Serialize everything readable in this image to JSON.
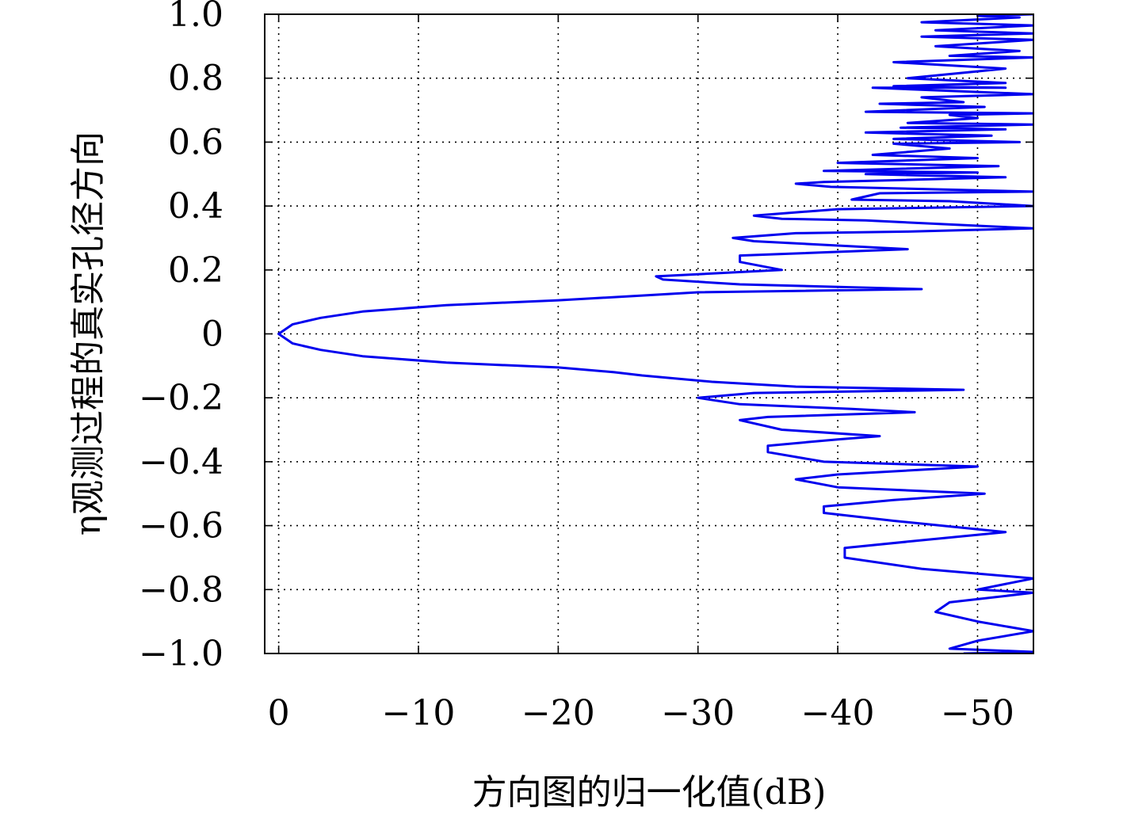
{
  "chart_data": {
    "type": "line",
    "title": "",
    "xlabel": "方向图的归一化值(dB)",
    "ylabel": "η观测过程的真实孔径方向",
    "xlim": [
      1,
      -54
    ],
    "ylim": [
      -1.0,
      1.0
    ],
    "x_axis_reversed": true,
    "grid": true,
    "legend": "none",
    "x_ticks": [
      0,
      -10,
      -20,
      -30,
      -40,
      -50
    ],
    "x_tick_labels": [
      "0",
      "−10",
      "−20",
      "−30",
      "−40",
      "−50"
    ],
    "y_ticks": [
      1.0,
      0.8,
      0.6,
      0.4,
      0.2,
      0,
      -0.2,
      -0.4,
      -0.6,
      -0.8,
      -1.0
    ],
    "y_tick_labels": [
      "1.0",
      "0.8",
      "0.6",
      "0.4",
      "0.2",
      "0",
      "−0.2",
      "−0.4",
      "−0.6",
      "−0.8",
      "−1.0"
    ],
    "series": [
      {
        "color": "#0000ee",
        "points": [
          [
            -54,
            1.0
          ],
          [
            -50,
            0.995
          ],
          [
            -53,
            0.99
          ],
          [
            -46,
            0.975
          ],
          [
            -54,
            0.965
          ],
          [
            -47,
            0.95
          ],
          [
            -54,
            0.94
          ],
          [
            -46,
            0.93
          ],
          [
            -54,
            0.92
          ],
          [
            -47,
            0.9
          ],
          [
            -53,
            0.885
          ],
          [
            -48,
            0.87
          ],
          [
            -54,
            0.865
          ],
          [
            -44,
            0.85
          ],
          [
            -52,
            0.83
          ],
          [
            -45,
            0.8
          ],
          [
            -52,
            0.785
          ],
          [
            -44,
            0.775
          ],
          [
            -52,
            0.77
          ],
          [
            -42.5,
            0.77
          ],
          [
            -54,
            0.75
          ],
          [
            -46,
            0.74
          ],
          [
            -49,
            0.725
          ],
          [
            -43,
            0.72
          ],
          [
            -50.5,
            0.71
          ],
          [
            -42,
            0.695
          ],
          [
            -54,
            0.69
          ],
          [
            -48,
            0.685
          ],
          [
            -50,
            0.675
          ],
          [
            -45,
            0.66
          ],
          [
            -54,
            0.655
          ],
          [
            -44.5,
            0.645
          ],
          [
            -52,
            0.64
          ],
          [
            -42,
            0.63
          ],
          [
            -51,
            0.62
          ],
          [
            -44,
            0.61
          ],
          [
            -53,
            0.6
          ],
          [
            -44,
            0.595
          ],
          [
            -48,
            0.58
          ],
          [
            -42.5,
            0.56
          ],
          [
            -50,
            0.55
          ],
          [
            -40,
            0.535
          ],
          [
            -51.5,
            0.525
          ],
          [
            -39,
            0.51
          ],
          [
            -50,
            0.505
          ],
          [
            -42,
            0.5
          ],
          [
            -52,
            0.49
          ],
          [
            -39,
            0.475
          ],
          [
            -37,
            0.47
          ],
          [
            -39.5,
            0.46
          ],
          [
            -54,
            0.445
          ],
          [
            -43,
            0.44
          ],
          [
            -41,
            0.42
          ],
          [
            -48,
            0.415
          ],
          [
            -54,
            0.4
          ],
          [
            -40,
            0.39
          ],
          [
            -34,
            0.37
          ],
          [
            -36,
            0.36
          ],
          [
            -42,
            0.355
          ],
          [
            -54,
            0.33
          ],
          [
            -45,
            0.32
          ],
          [
            -37,
            0.315
          ],
          [
            -32.5,
            0.3
          ],
          [
            -34,
            0.29
          ],
          [
            -45,
            0.265
          ],
          [
            -33,
            0.245
          ],
          [
            -33,
            0.225
          ],
          [
            -36,
            0.2
          ],
          [
            -27,
            0.18
          ],
          [
            -27.5,
            0.17
          ],
          [
            -33,
            0.155
          ],
          [
            -46,
            0.14
          ],
          [
            -30,
            0.13
          ],
          [
            -26,
            0.12
          ],
          [
            -20,
            0.105
          ],
          [
            -12,
            0.09
          ],
          [
            -6,
            0.07
          ],
          [
            -3,
            0.05
          ],
          [
            -1,
            0.03
          ],
          [
            0,
            0.0
          ],
          [
            -1,
            -0.03
          ],
          [
            -3,
            -0.05
          ],
          [
            -6,
            -0.07
          ],
          [
            -12,
            -0.09
          ],
          [
            -20,
            -0.105
          ],
          [
            -24,
            -0.12
          ],
          [
            -26,
            -0.13
          ],
          [
            -31,
            -0.15
          ],
          [
            -37,
            -0.165
          ],
          [
            -49,
            -0.175
          ],
          [
            -34,
            -0.185
          ],
          [
            -30,
            -0.2
          ],
          [
            -33,
            -0.22
          ],
          [
            -41,
            -0.235
          ],
          [
            -45.5,
            -0.245
          ],
          [
            -35,
            -0.26
          ],
          [
            -33,
            -0.27
          ],
          [
            -36,
            -0.3
          ],
          [
            -43,
            -0.32
          ],
          [
            -40,
            -0.33
          ],
          [
            -35,
            -0.35
          ],
          [
            -35,
            -0.37
          ],
          [
            -39,
            -0.4
          ],
          [
            -50,
            -0.415
          ],
          [
            -40,
            -0.44
          ],
          [
            -37,
            -0.455
          ],
          [
            -40,
            -0.48
          ],
          [
            -50.5,
            -0.5
          ],
          [
            -44,
            -0.52
          ],
          [
            -39,
            -0.54
          ],
          [
            -39,
            -0.56
          ],
          [
            -44,
            -0.585
          ],
          [
            -52,
            -0.62
          ],
          [
            -45,
            -0.65
          ],
          [
            -40.5,
            -0.67
          ],
          [
            -40.5,
            -0.7
          ],
          [
            -46,
            -0.735
          ],
          [
            -54,
            -0.765
          ],
          [
            -50,
            -0.8
          ],
          [
            -54,
            -0.81
          ],
          [
            -48,
            -0.84
          ],
          [
            -47,
            -0.87
          ],
          [
            -50,
            -0.9
          ],
          [
            -54,
            -0.93
          ],
          [
            -50,
            -0.96
          ],
          [
            -48,
            -0.985
          ],
          [
            -54,
            -0.995
          ],
          [
            -49,
            -1.0
          ]
        ]
      }
    ]
  }
}
